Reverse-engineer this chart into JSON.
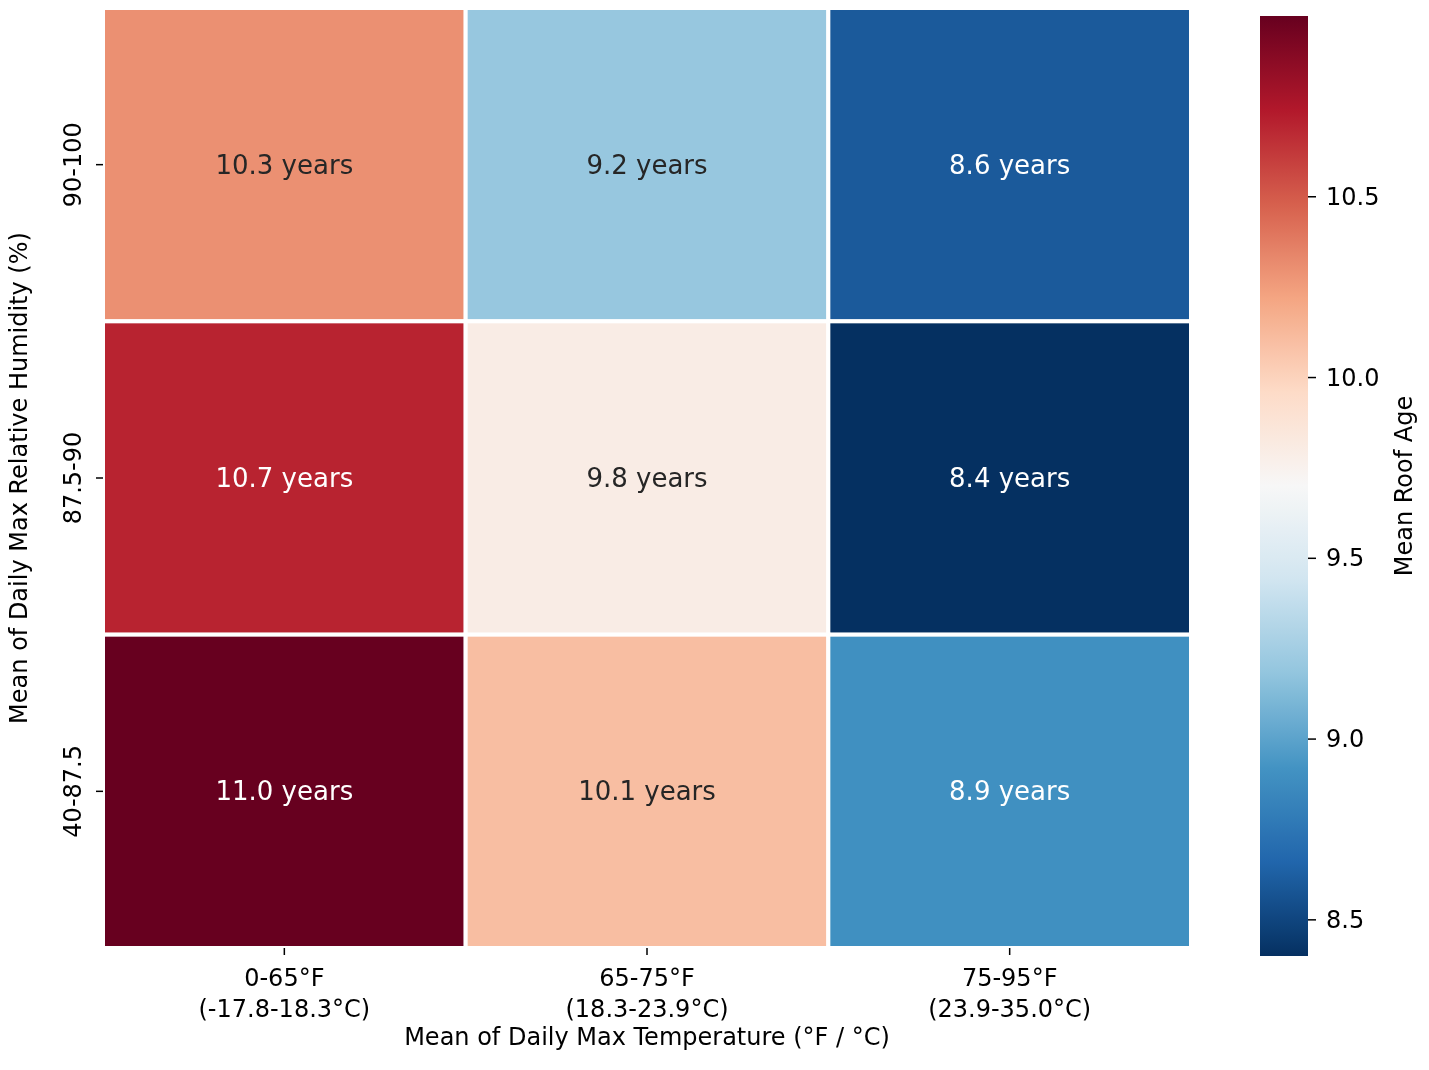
{
  "chart_data": {
    "type": "heatmap",
    "xlabel": "Mean of Daily Max Temperature (°F / °C)",
    "ylabel": "Mean of Daily Max Relative Humidity (%)",
    "clabel": "Mean Roof Age",
    "categories": [
      "0-65°F\n(-17.8-18.3°C)",
      "65-75°F\n(18.3-23.9°C)",
      "75-95°F\n(23.9-35.0°C)"
    ],
    "y_categories": [
      "90-100",
      "87.5-90",
      "40-87.5"
    ],
    "cells": [
      [
        10.3,
        9.2,
        8.6
      ],
      [
        10.7,
        9.8,
        8.4
      ],
      [
        11.0,
        10.1,
        8.9
      ]
    ],
    "cell_labels": [
      [
        "10.3 years",
        "9.2 years",
        "8.6 years"
      ],
      [
        "10.7 years",
        "9.8 years",
        "8.4 years"
      ],
      [
        "11.0 years",
        "10.1 years",
        "8.9 years"
      ]
    ],
    "clim": [
      8.4,
      11.0
    ],
    "cticks": [
      {
        "value": 8.5,
        "label": "8.5"
      },
      {
        "value": 9,
        "label": "9.0"
      },
      {
        "value": 9.5,
        "label": "9.5"
      },
      {
        "value": 10,
        "label": "10.0"
      },
      {
        "value": 10.5,
        "label": "10.5"
      }
    ]
  }
}
